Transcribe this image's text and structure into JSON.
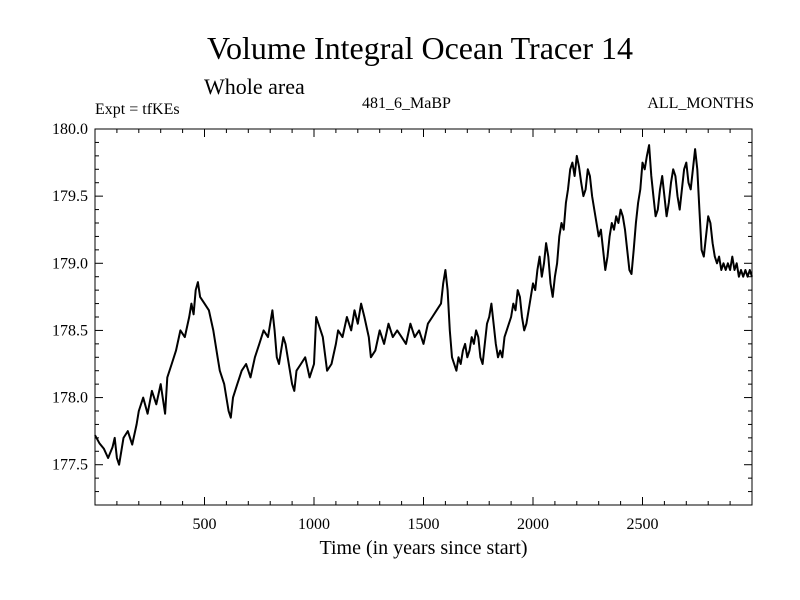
{
  "chart_data": {
    "type": "line",
    "title": "Volume Integral Ocean Tracer 14",
    "subtitle": "Whole area",
    "labels": {
      "left": "Expt = tfKEs",
      "center": "481_6_MaBP",
      "right": "ALL_MONTHS"
    },
    "xlabel": "Time (in years since start)",
    "ylabel": "",
    "xlim": [
      0,
      3000
    ],
    "ylim": [
      177.2,
      180.0
    ],
    "xticks": [
      500,
      1000,
      1500,
      2000,
      2500
    ],
    "yticks": [
      "177.5",
      "178.0",
      "178.5",
      "179.0",
      "179.5",
      "180.0"
    ],
    "grid": false,
    "series": [
      {
        "color": "#000000",
        "points": [
          [
            0,
            177.72
          ],
          [
            20,
            177.66
          ],
          [
            40,
            177.62
          ],
          [
            60,
            177.55
          ],
          [
            80,
            177.63
          ],
          [
            90,
            177.7
          ],
          [
            100,
            177.55
          ],
          [
            110,
            177.5
          ],
          [
            120,
            177.6
          ],
          [
            130,
            177.7
          ],
          [
            150,
            177.75
          ],
          [
            170,
            177.65
          ],
          [
            190,
            177.8
          ],
          [
            200,
            177.9
          ],
          [
            220,
            178.0
          ],
          [
            240,
            177.88
          ],
          [
            260,
            178.05
          ],
          [
            280,
            177.95
          ],
          [
            300,
            178.1
          ],
          [
            320,
            177.88
          ],
          [
            330,
            178.15
          ],
          [
            350,
            178.25
          ],
          [
            370,
            178.35
          ],
          [
            390,
            178.5
          ],
          [
            410,
            178.45
          ],
          [
            430,
            178.6
          ],
          [
            440,
            178.7
          ],
          [
            450,
            178.62
          ],
          [
            460,
            178.8
          ],
          [
            470,
            178.86
          ],
          [
            480,
            178.75
          ],
          [
            500,
            178.7
          ],
          [
            520,
            178.65
          ],
          [
            540,
            178.5
          ],
          [
            560,
            178.3
          ],
          [
            570,
            178.2
          ],
          [
            590,
            178.1
          ],
          [
            600,
            178.0
          ],
          [
            610,
            177.9
          ],
          [
            620,
            177.85
          ],
          [
            630,
            178.0
          ],
          [
            650,
            178.1
          ],
          [
            670,
            178.2
          ],
          [
            690,
            178.25
          ],
          [
            710,
            178.15
          ],
          [
            730,
            178.3
          ],
          [
            750,
            178.4
          ],
          [
            770,
            178.5
          ],
          [
            790,
            178.45
          ],
          [
            800,
            178.55
          ],
          [
            810,
            178.65
          ],
          [
            820,
            178.5
          ],
          [
            830,
            178.3
          ],
          [
            840,
            178.25
          ],
          [
            850,
            178.35
          ],
          [
            860,
            178.45
          ],
          [
            870,
            178.4
          ],
          [
            880,
            178.3
          ],
          [
            890,
            178.2
          ],
          [
            900,
            178.1
          ],
          [
            910,
            178.05
          ],
          [
            920,
            178.2
          ],
          [
            940,
            178.25
          ],
          [
            960,
            178.3
          ],
          [
            980,
            178.15
          ],
          [
            1000,
            178.25
          ],
          [
            1010,
            178.6
          ],
          [
            1020,
            178.55
          ],
          [
            1040,
            178.45
          ],
          [
            1060,
            178.2
          ],
          [
            1080,
            178.25
          ],
          [
            1100,
            178.4
          ],
          [
            1110,
            178.5
          ],
          [
            1130,
            178.45
          ],
          [
            1150,
            178.6
          ],
          [
            1170,
            178.5
          ],
          [
            1185,
            178.65
          ],
          [
            1200,
            178.55
          ],
          [
            1215,
            178.7
          ],
          [
            1230,
            178.6
          ],
          [
            1250,
            178.45
          ],
          [
            1260,
            178.3
          ],
          [
            1280,
            178.35
          ],
          [
            1300,
            178.5
          ],
          [
            1320,
            178.4
          ],
          [
            1340,
            178.55
          ],
          [
            1360,
            178.45
          ],
          [
            1380,
            178.5
          ],
          [
            1400,
            178.45
          ],
          [
            1420,
            178.4
          ],
          [
            1440,
            178.55
          ],
          [
            1460,
            178.45
          ],
          [
            1480,
            178.5
          ],
          [
            1500,
            178.4
          ],
          [
            1520,
            178.55
          ],
          [
            1540,
            178.6
          ],
          [
            1560,
            178.65
          ],
          [
            1580,
            178.7
          ],
          [
            1590,
            178.85
          ],
          [
            1600,
            178.95
          ],
          [
            1610,
            178.8
          ],
          [
            1620,
            178.5
          ],
          [
            1630,
            178.3
          ],
          [
            1640,
            178.25
          ],
          [
            1650,
            178.2
          ],
          [
            1660,
            178.3
          ],
          [
            1670,
            178.25
          ],
          [
            1680,
            178.35
          ],
          [
            1690,
            178.4
          ],
          [
            1700,
            178.3
          ],
          [
            1710,
            178.35
          ],
          [
            1720,
            178.45
          ],
          [
            1730,
            178.4
          ],
          [
            1740,
            178.5
          ],
          [
            1750,
            178.45
          ],
          [
            1760,
            178.3
          ],
          [
            1770,
            178.25
          ],
          [
            1780,
            178.4
          ],
          [
            1790,
            178.55
          ],
          [
            1800,
            178.6
          ],
          [
            1810,
            178.7
          ],
          [
            1820,
            178.55
          ],
          [
            1830,
            178.4
          ],
          [
            1840,
            178.3
          ],
          [
            1850,
            178.35
          ],
          [
            1860,
            178.3
          ],
          [
            1870,
            178.45
          ],
          [
            1880,
            178.5
          ],
          [
            1890,
            178.55
          ],
          [
            1900,
            178.6
          ],
          [
            1910,
            178.7
          ],
          [
            1920,
            178.65
          ],
          [
            1930,
            178.8
          ],
          [
            1940,
            178.75
          ],
          [
            1950,
            178.6
          ],
          [
            1960,
            178.5
          ],
          [
            1970,
            178.55
          ],
          [
            1980,
            178.65
          ],
          [
            1990,
            178.75
          ],
          [
            2000,
            178.85
          ],
          [
            2010,
            178.8
          ],
          [
            2020,
            178.95
          ],
          [
            2030,
            179.05
          ],
          [
            2040,
            178.9
          ],
          [
            2050,
            179.0
          ],
          [
            2060,
            179.15
          ],
          [
            2070,
            179.05
          ],
          [
            2080,
            178.85
          ],
          [
            2090,
            178.75
          ],
          [
            2100,
            178.9
          ],
          [
            2110,
            179.0
          ],
          [
            2120,
            179.2
          ],
          [
            2130,
            179.3
          ],
          [
            2140,
            179.25
          ],
          [
            2150,
            179.45
          ],
          [
            2160,
            179.55
          ],
          [
            2170,
            179.7
          ],
          [
            2180,
            179.75
          ],
          [
            2190,
            179.65
          ],
          [
            2200,
            179.8
          ],
          [
            2210,
            179.72
          ],
          [
            2220,
            179.6
          ],
          [
            2230,
            179.5
          ],
          [
            2240,
            179.55
          ],
          [
            2250,
            179.7
          ],
          [
            2260,
            179.65
          ],
          [
            2270,
            179.5
          ],
          [
            2280,
            179.4
          ],
          [
            2290,
            179.3
          ],
          [
            2300,
            179.2
          ],
          [
            2310,
            179.25
          ],
          [
            2320,
            179.1
          ],
          [
            2330,
            178.95
          ],
          [
            2340,
            179.05
          ],
          [
            2350,
            179.2
          ],
          [
            2360,
            179.3
          ],
          [
            2370,
            179.25
          ],
          [
            2380,
            179.35
          ],
          [
            2390,
            179.3
          ],
          [
            2400,
            179.4
          ],
          [
            2410,
            179.35
          ],
          [
            2420,
            179.25
          ],
          [
            2430,
            179.1
          ],
          [
            2440,
            178.95
          ],
          [
            2450,
            178.92
          ],
          [
            2460,
            179.1
          ],
          [
            2470,
            179.3
          ],
          [
            2480,
            179.45
          ],
          [
            2490,
            179.55
          ],
          [
            2500,
            179.75
          ],
          [
            2510,
            179.7
          ],
          [
            2520,
            179.8
          ],
          [
            2530,
            179.88
          ],
          [
            2540,
            179.65
          ],
          [
            2550,
            179.5
          ],
          [
            2560,
            179.35
          ],
          [
            2570,
            179.4
          ],
          [
            2580,
            179.55
          ],
          [
            2590,
            179.65
          ],
          [
            2600,
            179.5
          ],
          [
            2610,
            179.35
          ],
          [
            2620,
            179.45
          ],
          [
            2630,
            179.6
          ],
          [
            2640,
            179.7
          ],
          [
            2650,
            179.65
          ],
          [
            2660,
            179.5
          ],
          [
            2670,
            179.4
          ],
          [
            2680,
            179.55
          ],
          [
            2690,
            179.7
          ],
          [
            2700,
            179.75
          ],
          [
            2710,
            179.6
          ],
          [
            2720,
            179.55
          ],
          [
            2730,
            179.7
          ],
          [
            2740,
            179.85
          ],
          [
            2750,
            179.7
          ],
          [
            2760,
            179.4
          ],
          [
            2770,
            179.1
          ],
          [
            2780,
            179.05
          ],
          [
            2790,
            179.2
          ],
          [
            2800,
            179.35
          ],
          [
            2810,
            179.3
          ],
          [
            2820,
            179.15
          ],
          [
            2830,
            179.05
          ],
          [
            2840,
            179.0
          ],
          [
            2850,
            179.05
          ],
          [
            2860,
            178.95
          ],
          [
            2870,
            179.0
          ],
          [
            2880,
            178.95
          ],
          [
            2890,
            179.0
          ],
          [
            2900,
            178.95
          ],
          [
            2910,
            179.05
          ],
          [
            2920,
            178.95
          ],
          [
            2930,
            179.0
          ],
          [
            2940,
            178.9
          ],
          [
            2950,
            178.95
          ],
          [
            2960,
            178.9
          ],
          [
            2970,
            178.95
          ],
          [
            2980,
            178.9
          ],
          [
            2990,
            178.95
          ],
          [
            3000,
            178.9
          ]
        ]
      }
    ]
  }
}
